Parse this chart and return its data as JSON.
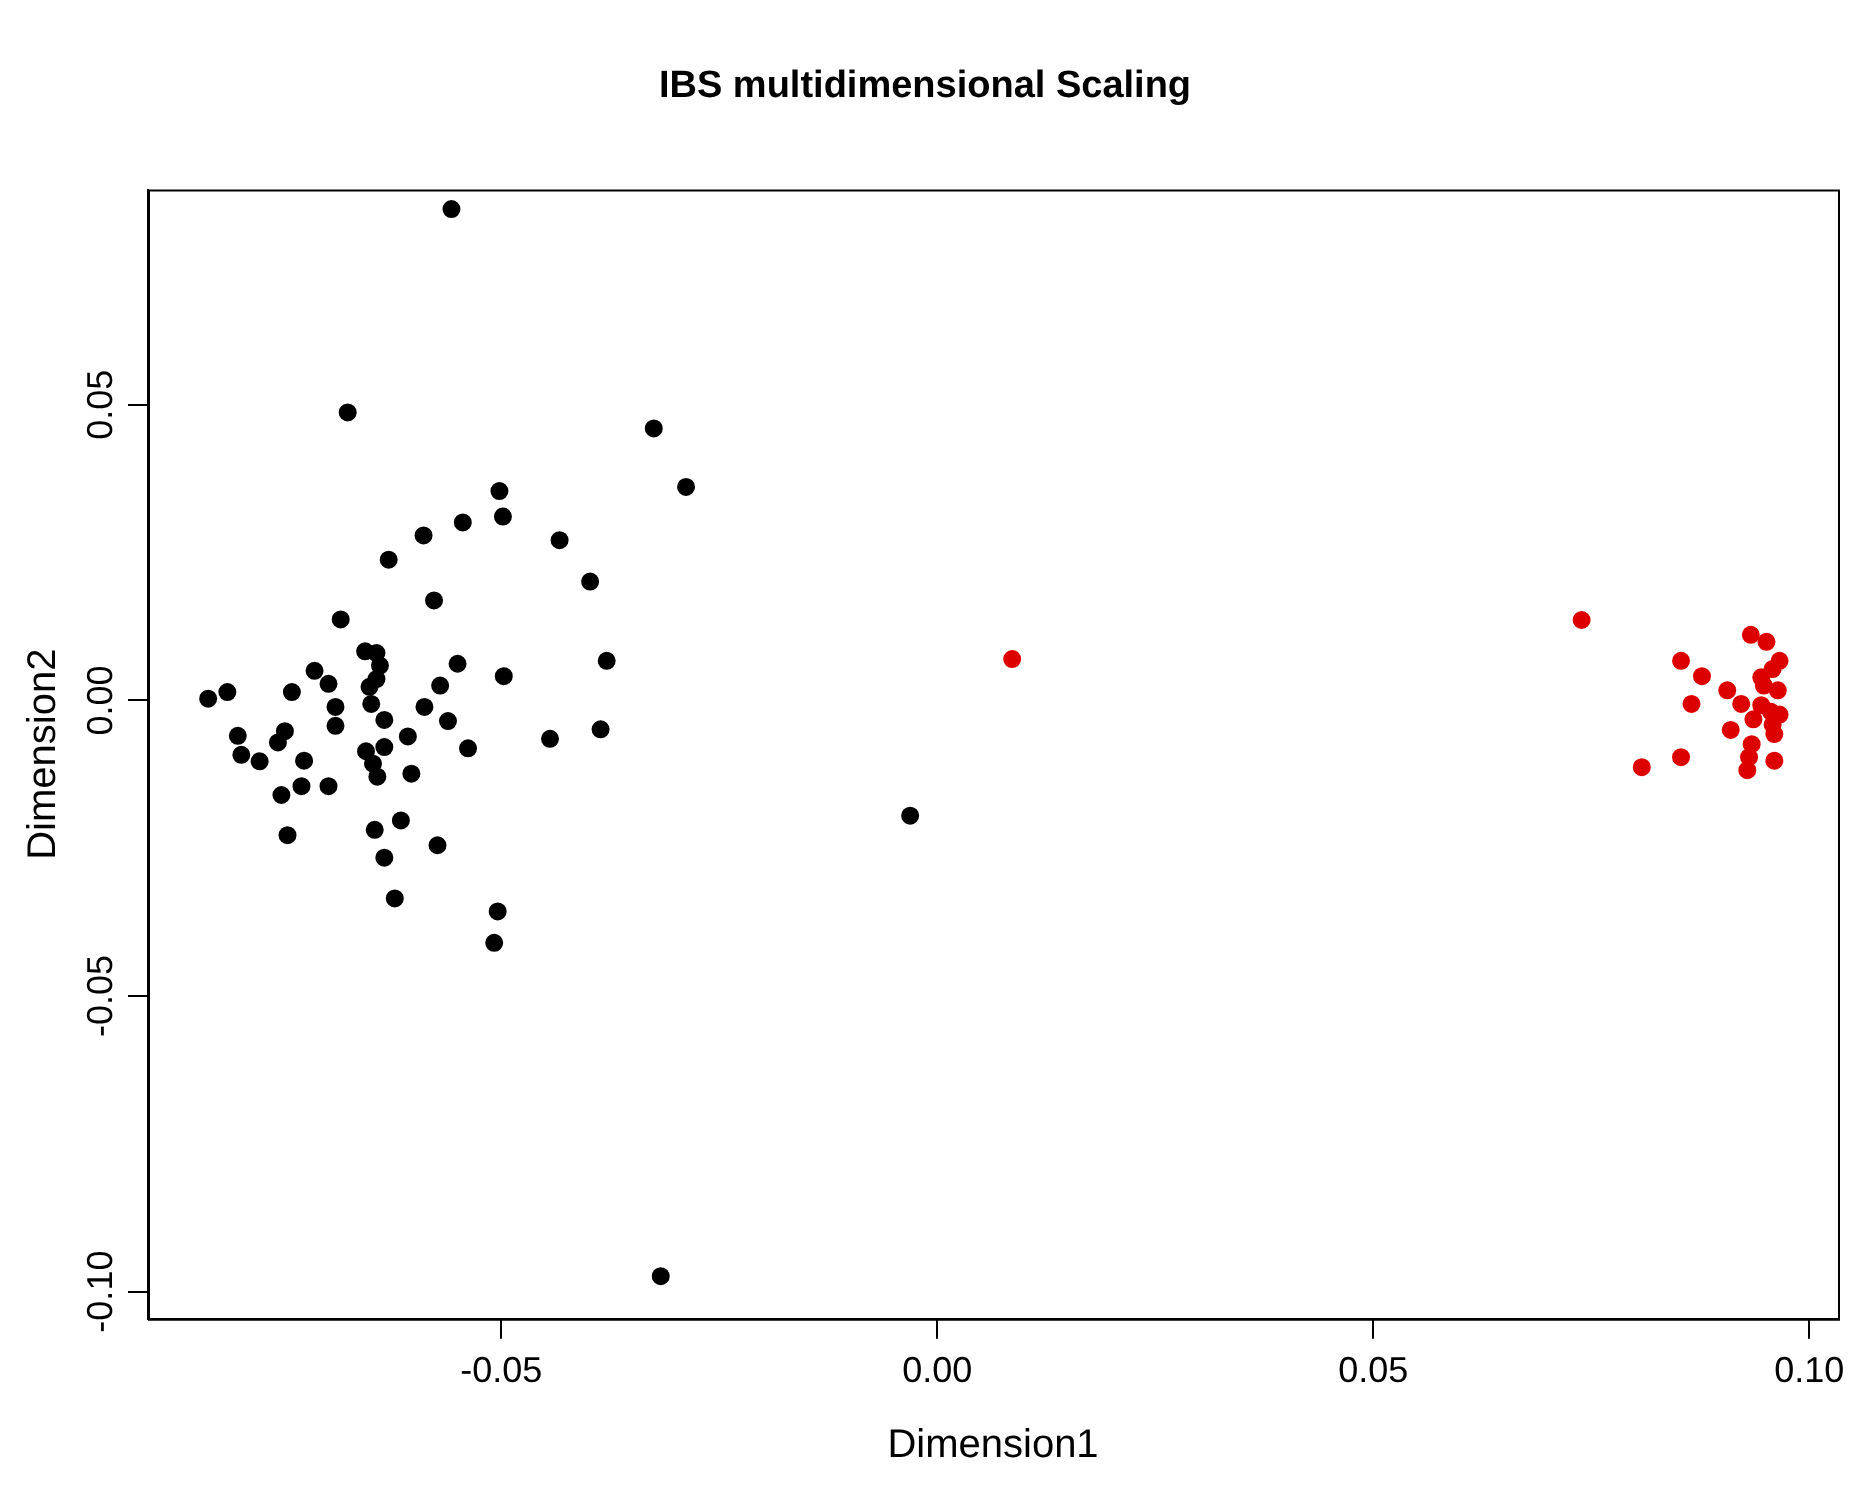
{
  "chart_data": {
    "type": "scatter",
    "title": "IBS multidimensional Scaling",
    "xlabel": "Dimension1",
    "ylabel": "Dimension2",
    "xlim": [
      -0.0905,
      0.1033
    ],
    "ylim": [
      -0.1046,
      0.0864
    ],
    "xticks": [
      {
        "value": -0.05,
        "label": "-0.05"
      },
      {
        "value": 0,
        "label": "0.00"
      },
      {
        "value": 0.05,
        "label": "0.05"
      },
      {
        "value": 0.1,
        "label": "0.10"
      }
    ],
    "yticks": [
      {
        "value": -0.1,
        "label": "-0.10"
      },
      {
        "value": -0.05,
        "label": "-0.05"
      },
      {
        "value": 0,
        "label": "0.00"
      },
      {
        "value": 0.05,
        "label": "0.05"
      }
    ],
    "grid": false,
    "legend": false,
    "marker": "circle",
    "series": [
      {
        "color": "#000000",
        "x": [
          -0.0676,
          -0.0325,
          -0.0502,
          -0.0498,
          -0.0544,
          -0.0589,
          -0.0433,
          -0.0629,
          -0.0398,
          -0.0577,
          -0.0684,
          -0.0656,
          -0.0643,
          -0.0639,
          -0.0643,
          -0.0379,
          -0.055,
          -0.0714,
          -0.0497,
          -0.0698,
          -0.057,
          -0.0651,
          -0.0836,
          -0.0814,
          -0.074,
          -0.0649,
          -0.069,
          -0.0588,
          -0.0634,
          -0.0561,
          -0.069,
          -0.0802,
          -0.0748,
          -0.0756,
          -0.0607,
          -0.0444,
          -0.0386,
          -0.0538,
          -0.0798,
          -0.0777,
          -0.0726,
          -0.0655,
          -0.0634,
          -0.0647,
          -0.0642,
          -0.0603,
          -0.0729,
          -0.0698,
          -0.0752,
          -0.0745,
          -0.0645,
          -0.0615,
          -0.0573,
          -0.0634,
          -0.0622,
          -0.0504,
          -0.0508,
          -0.0557,
          -0.0288,
          -0.0031,
          -0.0317
        ],
        "values": [
          0.0487,
          0.046,
          0.0354,
          0.0311,
          0.0301,
          0.0279,
          0.0271,
          0.0238,
          0.0201,
          0.0169,
          0.0137,
          0.0083,
          0.008,
          0.0059,
          0.0036,
          0.0067,
          0.0062,
          0.005,
          0.0041,
          0.0028,
          0.0025,
          0.0023,
          0.0003,
          0.0014,
          0.0014,
          -0.0006,
          -0.0011,
          -0.0011,
          -0.0033,
          -0.0035,
          -0.0043,
          -0.006,
          -0.0052,
          -0.0071,
          -0.0061,
          -0.0065,
          -0.0049,
          -0.0081,
          -0.0092,
          -0.0103,
          -0.0102,
          -0.0086,
          -0.0079,
          -0.0107,
          -0.0129,
          -0.0124,
          -0.0145,
          -0.0145,
          -0.016,
          -0.0228,
          -0.0219,
          -0.0203,
          -0.0245,
          -0.0266,
          -0.0335,
          -0.0357,
          -0.041,
          0.0831,
          0.0361,
          -0.0195,
          -0.0974
        ]
      },
      {
        "color": "#dd0000",
        "x": [
          0.0086,
          0.0739,
          0.0933,
          0.0951,
          0.0853,
          0.0966,
          0.0958,
          0.0877,
          0.0945,
          0.0948,
          0.0906,
          0.0964,
          0.0865,
          0.0922,
          0.0945,
          0.0956,
          0.0966,
          0.0936,
          0.0958,
          0.096,
          0.091,
          0.0934,
          0.0853,
          0.0931,
          0.096,
          0.0808,
          0.0929
        ],
        "values": [
          0.007,
          0.0136,
          0.0111,
          0.0099,
          0.0067,
          0.0067,
          0.0053,
          0.0041,
          0.0039,
          0.0025,
          0.0017,
          0.0017,
          -0.0006,
          -0.0006,
          -0.0008,
          -0.0019,
          -0.0024,
          -0.0032,
          -0.0041,
          -0.0057,
          -0.005,
          -0.0074,
          -0.0096,
          -0.0096,
          -0.0102,
          -0.0113,
          -0.0118
        ]
      }
    ]
  }
}
